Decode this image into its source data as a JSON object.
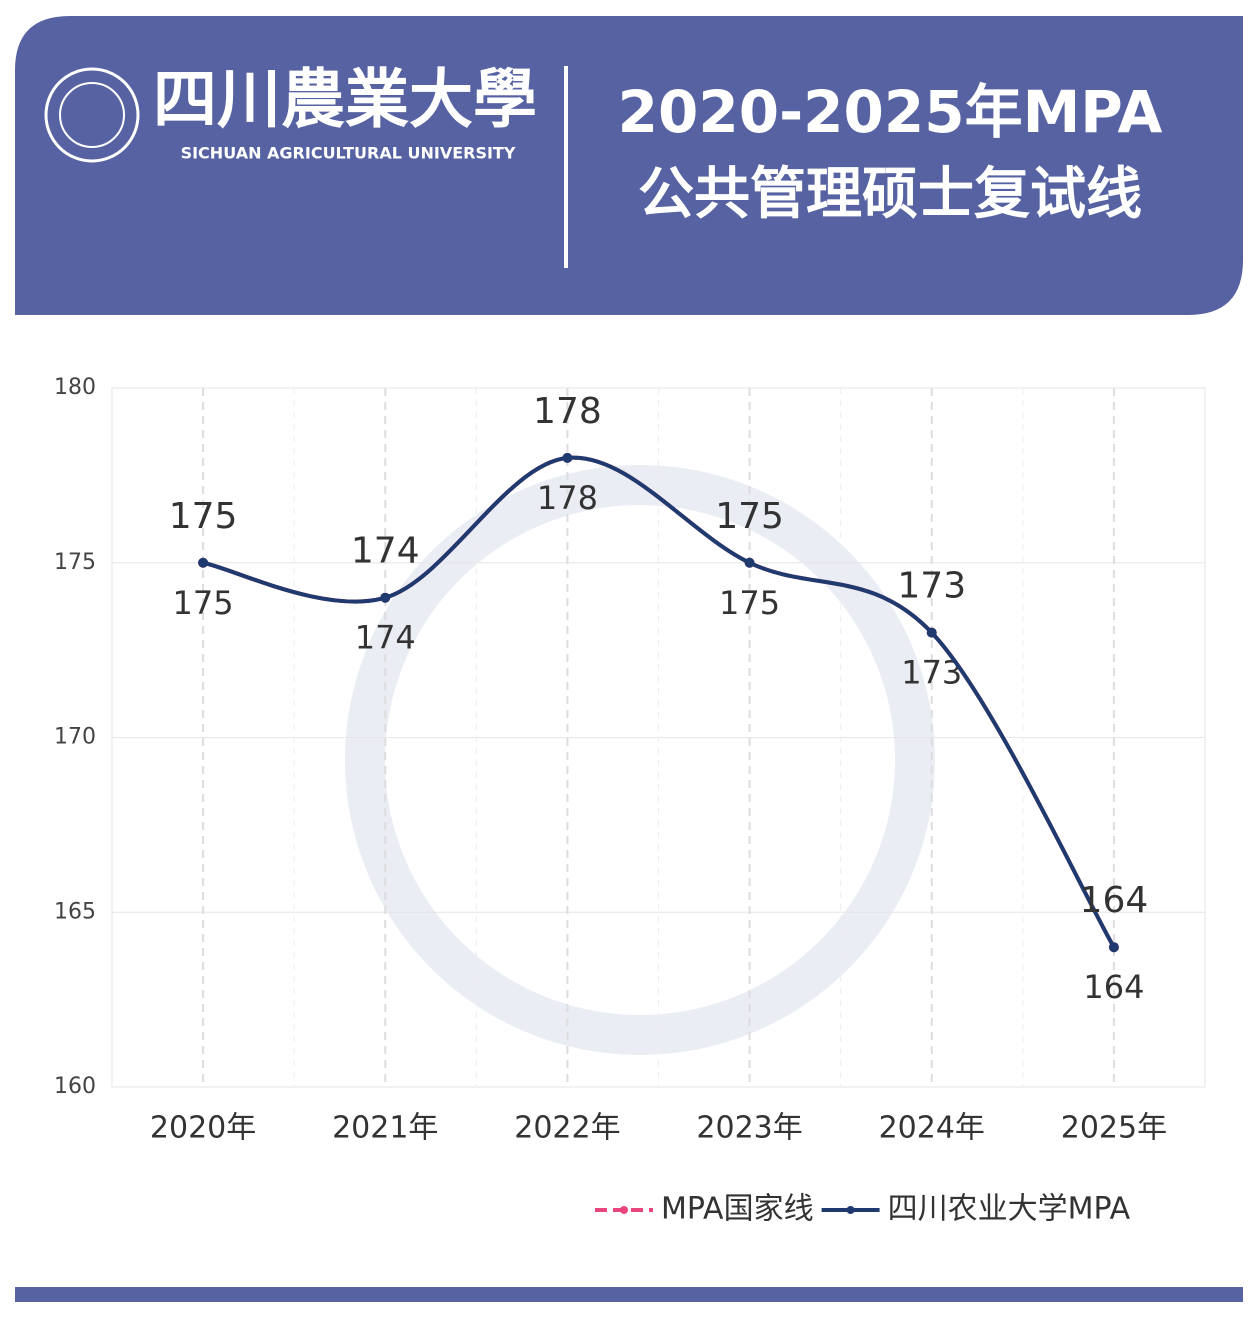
{
  "header": {
    "university_cn": "四川農業大學",
    "university_en": "SICHUAN AGRICULTURAL UNIVERSITY",
    "title_line1": "2020-2025年MPA",
    "title_line2": "公共管理硕士复试线"
  },
  "chart_data": {
    "type": "line",
    "categories": [
      "2020年",
      "2021年",
      "2022年",
      "2023年",
      "2024年",
      "2025年"
    ],
    "series": [
      {
        "name": "MPA国家线",
        "color": "#e8457a",
        "values": [
          175,
          174,
          178,
          175,
          173,
          164
        ]
      },
      {
        "name": "四川农业大学MPA",
        "color": "#1f3a6e",
        "values": [
          175,
          174,
          178,
          175,
          173,
          164
        ]
      }
    ],
    "ylim": [
      160,
      180
    ],
    "yticks": [
      160,
      165,
      170,
      175,
      180
    ],
    "grid": true,
    "smooth": true,
    "legend": "bottom-right"
  }
}
